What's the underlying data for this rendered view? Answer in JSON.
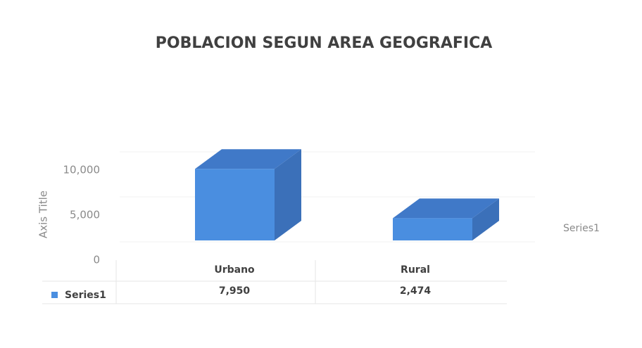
{
  "chart_data": {
    "type": "bar3d",
    "title": "POBLACION SEGUN AREA GEOGRAFICA",
    "y_label": "Axis Title",
    "categories": [
      "Urbano",
      "Rural"
    ],
    "series": [
      {
        "name": "Series1",
        "color": "#4a8ee0",
        "values": [
          7950,
          2474
        ],
        "value_labels": [
          "7,950",
          "2,474"
        ]
      }
    ],
    "ylim": [
      0,
      10000
    ],
    "yticks": [
      0,
      {
        "value": 5000,
        "label": "5,000"
      },
      {
        "value": 10000,
        "label": "10,000"
      }
    ]
  }
}
